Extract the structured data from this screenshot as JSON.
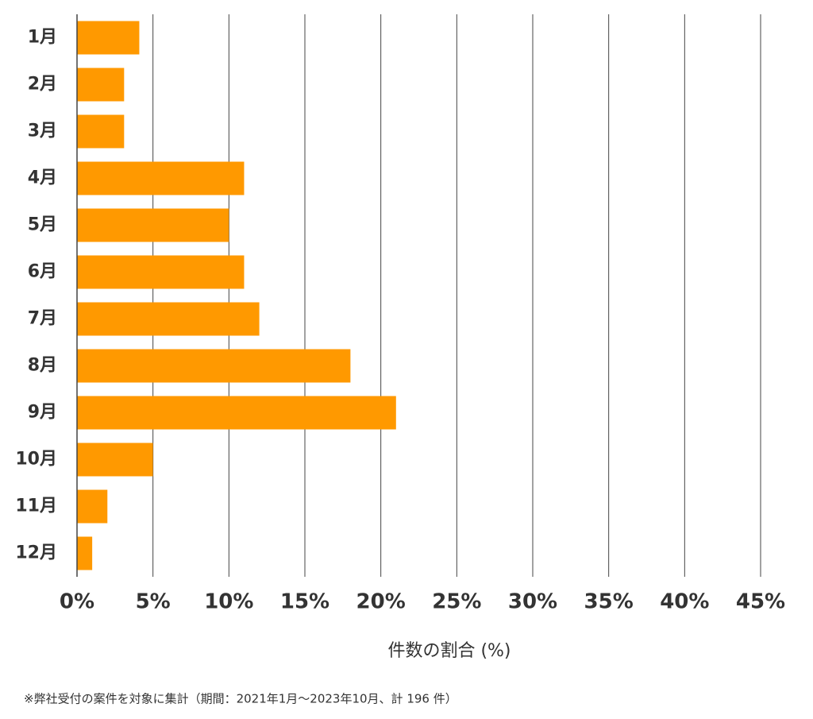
{
  "chart_data": {
    "type": "bar",
    "orientation": "horizontal",
    "categories": [
      "1月",
      "2月",
      "3月",
      "4月",
      "5月",
      "6月",
      "7月",
      "8月",
      "9月",
      "10月",
      "11月",
      "12月"
    ],
    "values": [
      4.1,
      3.1,
      3.1,
      11.0,
      10.0,
      11.0,
      12.0,
      18.0,
      21.0,
      5.0,
      2.0,
      1.0
    ],
    "color": "#ff9900",
    "xlim": [
      0,
      45
    ],
    "xticks": [
      {
        "value": 0,
        "label": "0%"
      },
      {
        "value": 5,
        "label": "5%"
      },
      {
        "value": 10,
        "label": "10%"
      },
      {
        "value": 15,
        "label": "15%"
      },
      {
        "value": 20,
        "label": "20%"
      },
      {
        "value": 25,
        "label": "25%"
      },
      {
        "value": 30,
        "label": "30%"
      },
      {
        "value": 35,
        "label": "35%"
      },
      {
        "value": 40,
        "label": "40%"
      },
      {
        "value": 45,
        "label": "45%"
      }
    ],
    "xlabel": "件数の割合 (%)",
    "footnote": "※弊社受付の案件を対象に集計（期間：2021年1月～2023年10月、計 196 件）",
    "grid": true
  }
}
